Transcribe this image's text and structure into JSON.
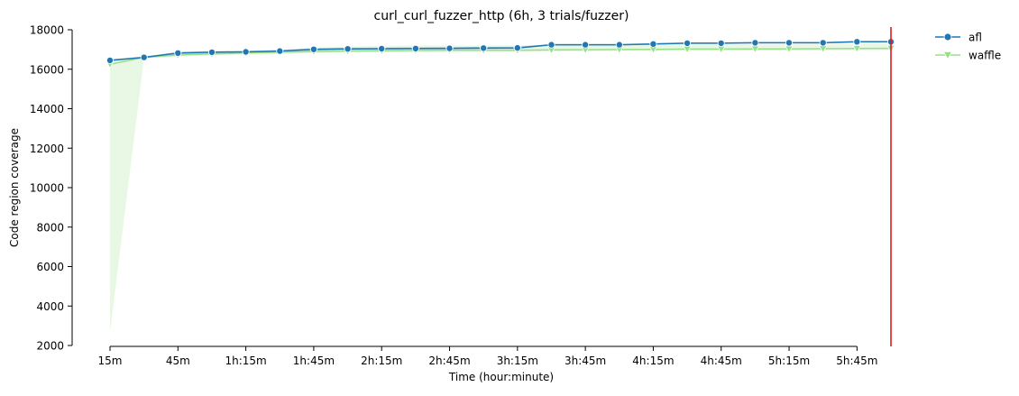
{
  "chart_data": {
    "type": "line",
    "title": "curl_curl_fuzzer_http (6h, 3 trials/fuzzer)",
    "xlabel": "Time (hour:minute)",
    "ylabel": "Code region coverage",
    "x_unit": "minutes",
    "x": [
      15,
      30,
      45,
      60,
      75,
      90,
      105,
      120,
      135,
      150,
      165,
      180,
      195,
      210,
      225,
      240,
      255,
      270,
      285,
      300,
      315,
      330,
      345,
      360
    ],
    "xlim": [
      15,
      360
    ],
    "x_ticks": [
      15,
      45,
      75,
      105,
      135,
      165,
      195,
      225,
      255,
      285,
      315,
      345
    ],
    "x_tick_labels": [
      "15m",
      "45m",
      "1h:15m",
      "1h:45m",
      "2h:15m",
      "2h:45m",
      "3h:15m",
      "3h:45m",
      "4h:15m",
      "4h:45m",
      "5h:15m",
      "5h:45m"
    ],
    "ylim": [
      2000,
      18000
    ],
    "y_ticks": [
      2000,
      4000,
      6000,
      8000,
      10000,
      12000,
      14000,
      16000,
      18000
    ],
    "grid": false,
    "legend_position": "outside-top-right",
    "vline": {
      "x": 360,
      "color": "#e31a1c"
    },
    "series": [
      {
        "name": "afl",
        "color": "#1f77b4",
        "marker": "circle",
        "values": [
          16450,
          16600,
          16820,
          16860,
          16880,
          16920,
          17010,
          17030,
          17040,
          17050,
          17060,
          17070,
          17080,
          17240,
          17240,
          17240,
          17280,
          17320,
          17320,
          17340,
          17340,
          17340,
          17390,
          17390
        ],
        "band_lower": [
          16400,
          16560,
          16760,
          16800,
          16820,
          16860,
          16950,
          16970,
          16980,
          16990,
          17000,
          17010,
          17020,
          17200,
          17200,
          17200,
          17240,
          17280,
          17280,
          17300,
          17300,
          17300,
          17350,
          17350
        ],
        "band_upper": [
          16500,
          16640,
          16880,
          16920,
          16940,
          16980,
          17070,
          17090,
          17100,
          17110,
          17120,
          17130,
          17140,
          17280,
          17280,
          17280,
          17320,
          17360,
          17360,
          17380,
          17380,
          17380,
          17430,
          17430
        ]
      },
      {
        "name": "waffle",
        "color": "#98df8a",
        "marker": "triangle-down",
        "values": [
          16250,
          16600,
          16720,
          16780,
          16820,
          16860,
          16900,
          16920,
          16940,
          16950,
          16960,
          16960,
          16960,
          16980,
          16990,
          17000,
          17010,
          17020,
          17020,
          17030,
          17030,
          17040,
          17050,
          17060
        ],
        "band_lower": [
          2700,
          16540,
          16640,
          16700,
          16740,
          16780,
          16820,
          16840,
          16860,
          16870,
          16880,
          16880,
          16880,
          16900,
          16910,
          16920,
          16930,
          16940,
          16940,
          16950,
          16950,
          16960,
          16960,
          16970
        ],
        "band_upper": [
          16500,
          16660,
          16800,
          16860,
          16900,
          16950,
          17100,
          17150,
          17180,
          17200,
          17200,
          17200,
          17200,
          17220,
          17230,
          17240,
          17250,
          17260,
          17260,
          17270,
          17270,
          17280,
          17290,
          17300
        ]
      }
    ]
  }
}
